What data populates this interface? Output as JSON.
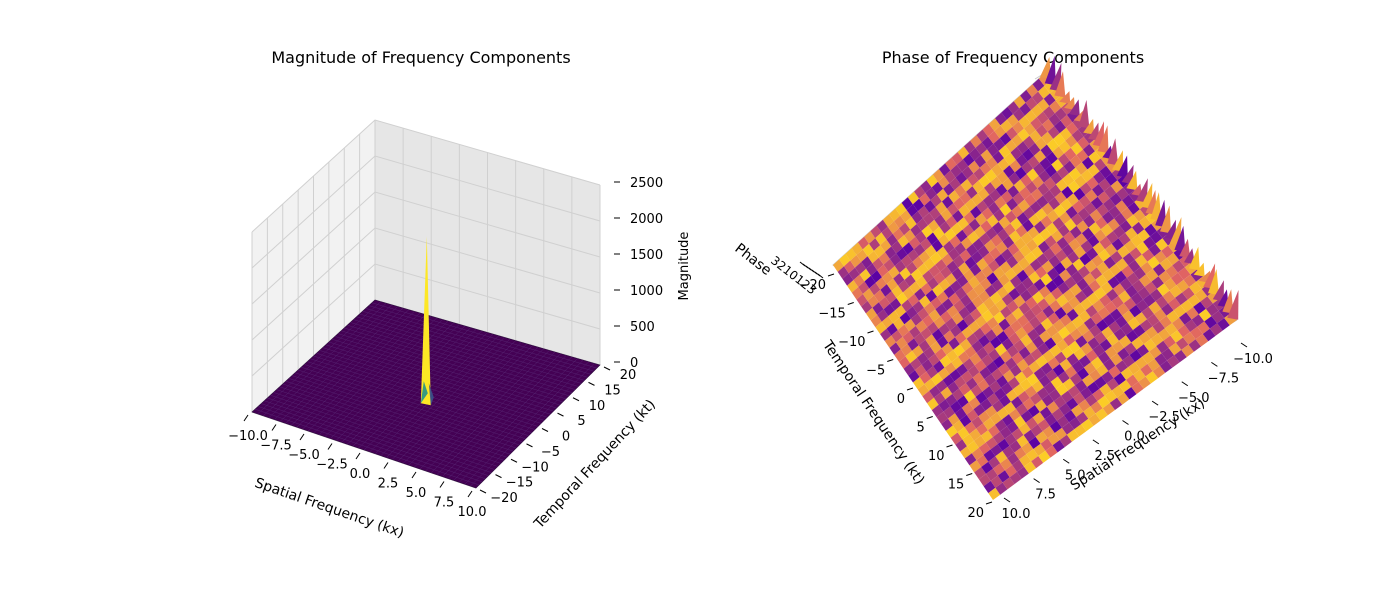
{
  "chart_data": [
    {
      "type": "surface3d",
      "title": "Magnitude of Frequency Components",
      "xlabel": "Spatial Frequency (kx)",
      "ylabel": "Temporal Frequency (kt)",
      "zlabel": "Magnitude",
      "xlim": [
        -10,
        10
      ],
      "ylim": [
        -20,
        20
      ],
      "zlim": [
        0,
        2500
      ],
      "xticks": [
        "−10.0",
        "−7.5",
        "−5.0",
        "−2.5",
        "0.0",
        "2.5",
        "5.0",
        "7.5",
        "10.0"
      ],
      "yticks": [
        "−20",
        "−15",
        "−10",
        "−5",
        "0",
        "5",
        "10",
        "15",
        "20"
      ],
      "zticks": [
        "0",
        "500",
        "1000",
        "1500",
        "2000",
        "2500"
      ],
      "peak": {
        "kx": 0,
        "kt": 0,
        "magnitude": 2150
      },
      "baseline_magnitude": 0,
      "colormap": "viridis"
    },
    {
      "type": "surface3d",
      "title": "Phase of Frequency Components",
      "xlabel": "Spatial Frequency (kx)",
      "ylabel": "Temporal Frequency (kt)",
      "zlabel": "Phase",
      "xlim": [
        -10,
        10
      ],
      "ylim": [
        -20,
        20
      ],
      "zlim": [
        -3.14,
        3.14
      ],
      "xticks": [
        "10.0",
        "7.5",
        "5.0",
        "2.5",
        "0.0",
        "−2.5",
        "−5.0",
        "−7.5",
        "−10.0"
      ],
      "yticks": [
        "−20",
        "−15",
        "−10",
        "−5",
        "0",
        "5",
        "10",
        "15",
        "20"
      ],
      "zticks_visible": "3210123",
      "colormap": "plasma"
    }
  ],
  "colors": {
    "viridis_low": "#440154",
    "viridis_mid": "#21918c",
    "viridis_high": "#fde725",
    "pane_light": "#f2f2f2",
    "pane_dark": "#e6e6e6",
    "grid": "#d0d0d0",
    "plasma_low": "#5b02a3",
    "plasma_mid": "#e16462",
    "plasma_high": "#fcce25"
  }
}
